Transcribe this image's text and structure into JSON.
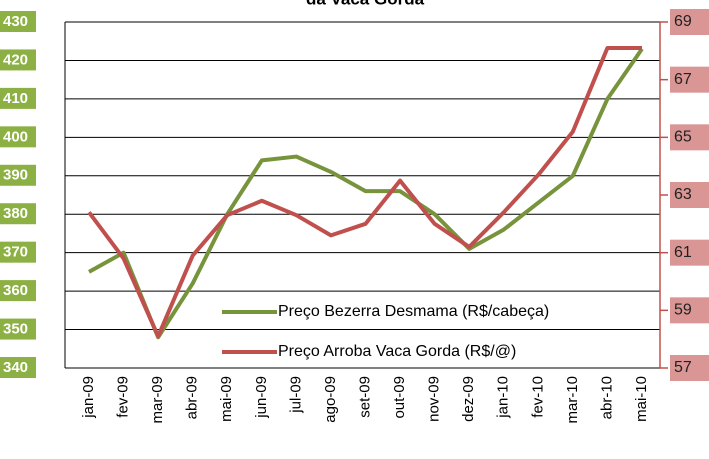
{
  "chart_data": {
    "type": "line",
    "title": "da Vaca Gorda",
    "categories": [
      "jan-09",
      "fev-09",
      "mar-09",
      "abr-09",
      "mai-09",
      "jun-09",
      "jul-09",
      "ago-09",
      "set-09",
      "out-09",
      "nov-09",
      "dez-09",
      "jan-10",
      "fev-10",
      "mar-10",
      "abr-10",
      "mai-10"
    ],
    "series": [
      {
        "name": "Preço Bezerra Desmama (R$/cabeça)",
        "color": "#77933c",
        "values": [
          365,
          370,
          348,
          362,
          380,
          394,
          395,
          391,
          386,
          386,
          380,
          371,
          376,
          383,
          390,
          410,
          423
        ]
      },
      {
        "name": "Preço Arroba Vaca Gorda (R$/@)",
        "color": "#c0504d",
        "axis": "y2",
        "values": [
          62.4,
          60.8,
          58.1,
          60.9,
          62.3,
          62.8,
          62.3,
          61.6,
          62.0,
          63.5,
          62.0,
          61.2,
          62.4,
          63.7,
          65.2,
          68.1,
          68.1
        ]
      }
    ],
    "ylim": [
      340,
      430
    ],
    "yticks": [
      340,
      350,
      360,
      370,
      380,
      390,
      400,
      410,
      420,
      430
    ],
    "y2lim": [
      57,
      69
    ],
    "y2ticks": [
      57,
      59,
      61,
      63,
      65,
      67,
      69
    ],
    "grid": true,
    "legend": "lower right"
  }
}
